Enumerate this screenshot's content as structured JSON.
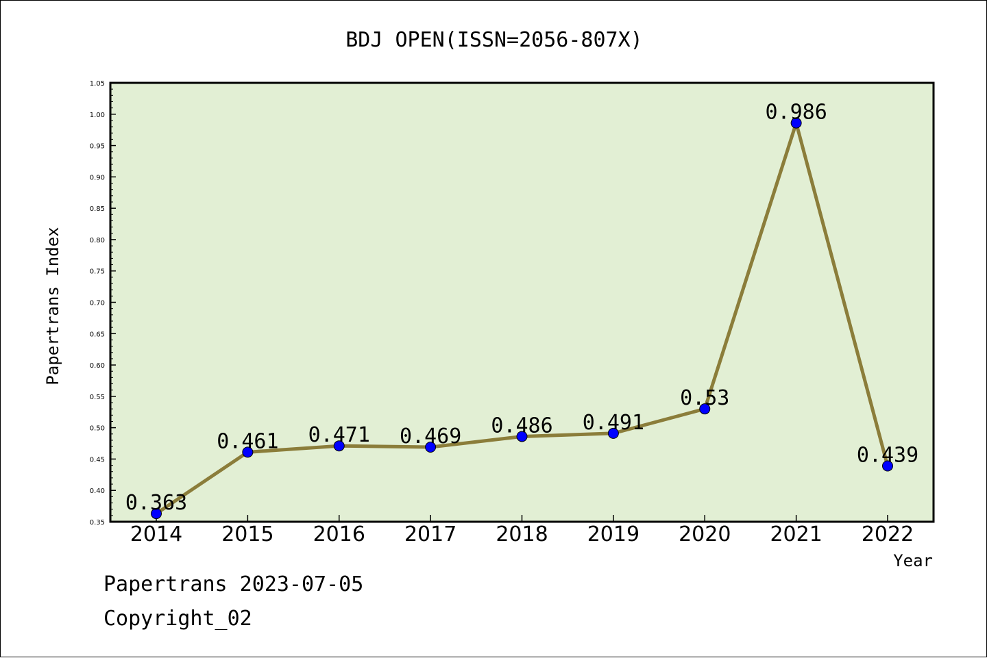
{
  "chart_data": {
    "type": "line",
    "title": "BDJ OPEN(ISSN=2056-807X)",
    "xlabel": "Year",
    "ylabel": "Papertrans Index",
    "categories": [
      "2014",
      "2015",
      "2016",
      "2017",
      "2018",
      "2019",
      "2020",
      "2021",
      "2022"
    ],
    "series": [
      {
        "values": [
          0.363,
          0.461,
          0.471,
          0.469,
          0.486,
          0.491,
          0.53,
          0.986,
          0.439
        ],
        "labels": [
          "0.363",
          "0.461",
          "0.471",
          "0.469",
          "0.486",
          "0.491",
          "0.53",
          "0.986",
          "0.439"
        ]
      }
    ],
    "ylim": [
      0.35,
      1.05
    ],
    "yticks": [
      "0.35",
      "0.40",
      "0.45",
      "0.50",
      "0.55",
      "0.60",
      "0.65",
      "0.70",
      "0.75",
      "0.80",
      "0.85",
      "0.90",
      "0.95",
      "1.00",
      "1.05"
    ],
    "grid": false,
    "colors": {
      "plot_bg": "#e2efd4",
      "line": "#8b7d3a",
      "marker": "#0000ff"
    }
  },
  "footer": {
    "line1": "Papertrans 2023-07-05",
    "line2": "Copyright_02"
  }
}
